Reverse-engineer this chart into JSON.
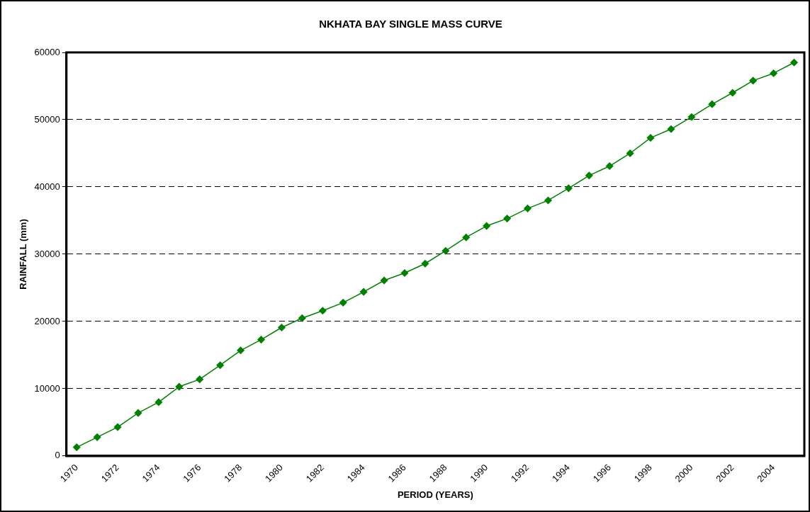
{
  "chart_data": {
    "type": "line",
    "title": "NKHATA BAY SINGLE MASS CURVE",
    "xlabel": "PERIOD (YEARS)",
    "ylabel": "RAINFALL (mm)",
    "categories": [
      "1970",
      null,
      "1972",
      null,
      "1974",
      null,
      "1976",
      null,
      "1978",
      null,
      "1980",
      null,
      "1982",
      null,
      "1984",
      null,
      "1986",
      null,
      "1988",
      null,
      "1990",
      null,
      "1992",
      null,
      "1994",
      null,
      "1996",
      null,
      "1998",
      null,
      "2000",
      null,
      "2002",
      null,
      "2004",
      null
    ],
    "series": [
      {
        "color": "#008000",
        "values": [
          1300,
          2800,
          4300,
          6400,
          8000,
          10300,
          11400,
          13500,
          15700,
          17300,
          19100,
          20500,
          21600,
          22800,
          24400,
          26100,
          27200,
          28600,
          30500,
          32500,
          34200,
          35300,
          36800,
          38000,
          39800,
          41700,
          43100,
          45000,
          47300,
          48600,
          50400,
          52300,
          54000,
          55800,
          56900,
          58500
        ]
      }
    ],
    "ylim": [
      0,
      60000
    ],
    "yticks": [
      0,
      10000,
      20000,
      30000,
      40000,
      50000,
      60000
    ],
    "grid": "y",
    "legend": false,
    "marker": "diamond",
    "line_style": "solid"
  }
}
